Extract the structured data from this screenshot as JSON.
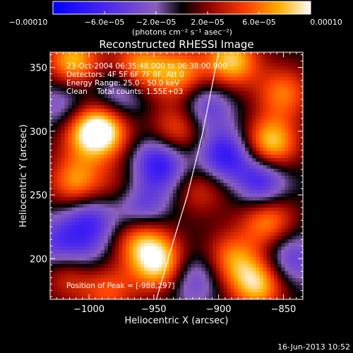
{
  "chart_data": {
    "type": "heatmap",
    "title": "Reconstructed RHESSI Image",
    "xlabel": "Heliocentric X (arcsec)",
    "ylabel": "Heliocentric Y (arcsec)",
    "xlim": [
      -1030,
      -835
    ],
    "ylim": [
      168,
      362
    ],
    "x_ticks": [
      -1000,
      -950,
      -900,
      -850
    ],
    "x_tick_labels": [
      "−1000",
      "−950",
      "−900",
      "−850"
    ],
    "y_ticks": [
      200,
      250,
      300,
      350
    ],
    "y_tick_labels": [
      "200",
      "250",
      "300",
      "350"
    ],
    "colorbar": {
      "range": [
        -0.0001,
        0.0001
      ],
      "ticks": [
        -0.0001,
        -6e-05,
        -2e-05,
        2e-05,
        6e-05,
        0.0001
      ],
      "tick_labels": [
        "−0.00010",
        "−6.0e−05",
        "−2.0e−05",
        "2.0e−05",
        "6.0e−05",
        "0.00010"
      ],
      "unit_label": "(photons cm⁻² s⁻¹ asec⁻²)"
    },
    "annotations": {
      "time": "23-Oct-2004 06:35:48.000 to 06:38:00.000",
      "detectors": "Detectors: 4F 5F 6F 7F 8F, Att 0",
      "energy": "Energy Range: 25.0 - 50.0 keV",
      "clean": "Clean    Total counts: 1.55E+03",
      "peak": "Position of Peak = [-988,297]"
    },
    "peak_position": [
      -988,
      297
    ],
    "limb_curve": {
      "x": [
        -948,
        -936,
        -924,
        -912,
        -900
      ],
      "y": [
        168,
        210,
        250,
        300,
        362
      ]
    },
    "hotspots": [
      {
        "x": -1012,
        "y": 355,
        "amp": 0.8
      },
      {
        "x": -1010,
        "y": 260,
        "amp": 0.7
      },
      {
        "x": -1005,
        "y": 300,
        "amp": 0.45
      },
      {
        "x": -990,
        "y": 300,
        "amp": 1.0
      },
      {
        "x": -962,
        "y": 350,
        "amp": 0.75
      },
      {
        "x": -930,
        "y": 345,
        "amp": 0.7
      },
      {
        "x": -932,
        "y": 300,
        "amp": 0.6
      },
      {
        "x": -890,
        "y": 355,
        "amp": 0.85
      },
      {
        "x": -850,
        "y": 330,
        "amp": 0.6
      },
      {
        "x": -860,
        "y": 290,
        "amp": 0.9
      },
      {
        "x": -862,
        "y": 230,
        "amp": 0.7
      },
      {
        "x": -890,
        "y": 200,
        "amp": 0.6
      },
      {
        "x": -870,
        "y": 180,
        "amp": 0.85
      },
      {
        "x": -945,
        "y": 195,
        "amp": 0.9
      },
      {
        "x": -960,
        "y": 215,
        "amp": 0.7
      },
      {
        "x": -1015,
        "y": 190,
        "amp": 0.6
      },
      {
        "x": -985,
        "y": 175,
        "amp": 0.5
      },
      {
        "x": -915,
        "y": 255,
        "amp": 0.4
      },
      {
        "x": -880,
        "y": 260,
        "amp": 0.4
      },
      {
        "x": -975,
        "y": 255,
        "amp": 0.3
      }
    ],
    "coldspots": [
      {
        "x": -945,
        "y": 275,
        "amp": -0.8
      },
      {
        "x": -960,
        "y": 240,
        "amp": -0.6
      },
      {
        "x": -870,
        "y": 260,
        "amp": -1.0
      },
      {
        "x": -895,
        "y": 280,
        "amp": -0.8
      },
      {
        "x": -1000,
        "y": 230,
        "amp": -0.6
      },
      {
        "x": -1025,
        "y": 210,
        "amp": -0.5
      },
      {
        "x": -920,
        "y": 185,
        "amp": -0.5
      },
      {
        "x": -975,
        "y": 330,
        "amp": -0.5
      },
      {
        "x": -1020,
        "y": 320,
        "amp": -0.4
      },
      {
        "x": -910,
        "y": 320,
        "amp": -0.5
      },
      {
        "x": -845,
        "y": 200,
        "amp": -0.5
      },
      {
        "x": -1005,
        "y": 200,
        "amp": -0.4
      }
    ]
  },
  "footer": {
    "timestamp": "16-Jun-2013 10:52"
  }
}
